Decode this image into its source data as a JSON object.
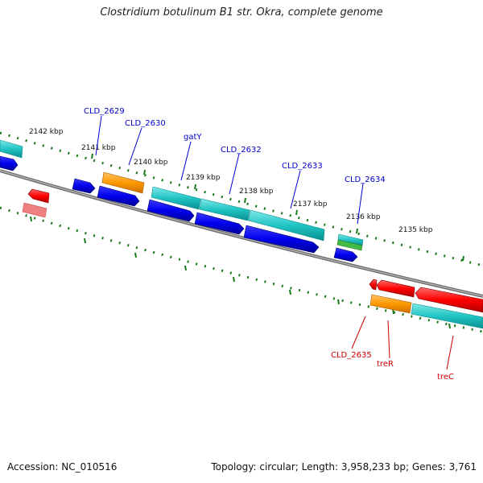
{
  "title": "Clostridium botulinum B1 str. Okra, complete genome",
  "accession": "Accession: NC_010516",
  "stats": "Topology: circular; Length: 3,958,233 bp; Genes: 3,761",
  "tick_labels": {
    "k2142": "2142 kbp",
    "k2141": "2141 kbp",
    "k2140": "2140 kbp",
    "k2139": "2139 kbp",
    "k2138": "2138 kbp",
    "k2137": "2137 kbp",
    "k2136": "2136 kbp",
    "k2135": "2135 kbp"
  },
  "genes_top": {
    "g2629": "CLD_2629",
    "g2630": "CLD_2630",
    "gatY": "gatY",
    "g2632": "CLD_2632",
    "g2633": "CLD_2633",
    "g2634": "CLD_2634"
  },
  "genes_bottom": {
    "g2635": "CLD_2635",
    "treR": "treR",
    "treC": "treC"
  },
  "colors": {
    "blue": "#0000ee",
    "cyan": "#22c4c4",
    "orange": "#ff9900",
    "red": "#ff0000",
    "pink": "#f08080",
    "green": "#44bb44",
    "tick": "#1a7a1a",
    "backbone": "#888888"
  }
}
